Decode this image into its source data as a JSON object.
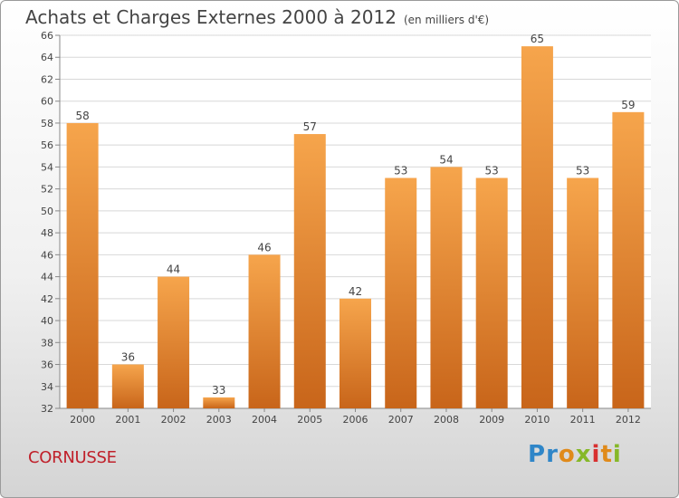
{
  "header": {
    "title": "Achats et Charges Externes 2000 à 2012",
    "unit": "(en milliers d'€)"
  },
  "location": "CORNUSSE",
  "logo": {
    "text": "Proxiti",
    "parts": [
      "P",
      "r",
      "o",
      "x",
      "i",
      "t",
      "i"
    ]
  },
  "colors": {
    "bar_top": "#f6a54c",
    "bar_bottom": "#c8651a",
    "grid": "#d8d8d8",
    "text": "#444444",
    "place": "#c0202a"
  },
  "chart_data": {
    "type": "bar",
    "categories": [
      "2000",
      "2001",
      "2002",
      "2003",
      "2004",
      "2005",
      "2006",
      "2007",
      "2008",
      "2009",
      "2010",
      "2011",
      "2012"
    ],
    "values": [
      58,
      36,
      44,
      33,
      46,
      57,
      42,
      53,
      54,
      53,
      65,
      53,
      59
    ],
    "title": "Achats et Charges Externes 2000 à 2012",
    "subtitle": "(en milliers d'€)",
    "ylim": [
      32,
      66
    ],
    "yticks": [
      32,
      34,
      36,
      38,
      40,
      42,
      44,
      46,
      48,
      50,
      52,
      54,
      56,
      58,
      60,
      62,
      64,
      66
    ],
    "grid": true,
    "data_labels": true
  }
}
